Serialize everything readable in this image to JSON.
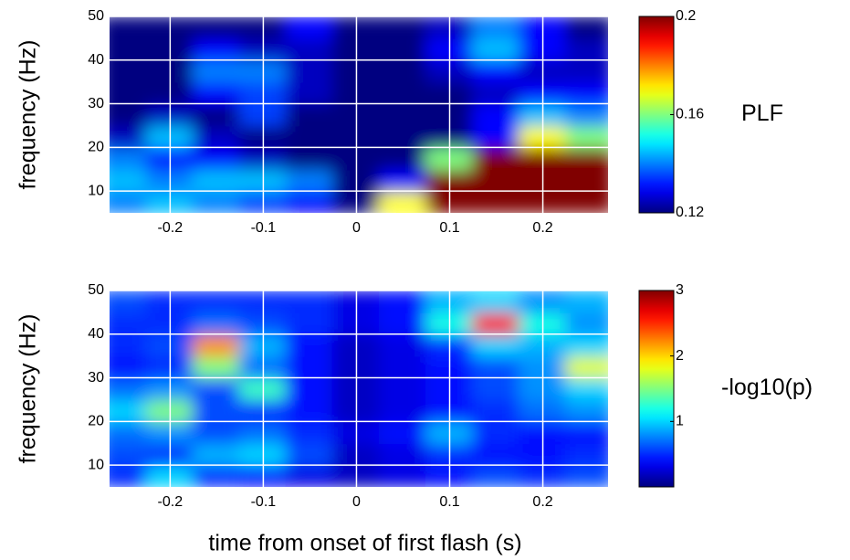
{
  "chart_data": [
    {
      "type": "heatmap",
      "ylabel": "frequency (Hz)",
      "colorbar_label": "PLF",
      "colormap": "jet",
      "grid": true,
      "x": [
        -0.25,
        -0.2,
        -0.15,
        -0.1,
        -0.05,
        0,
        0.05,
        0.1,
        0.15,
        0.2,
        0.25
      ],
      "y": [
        7.5,
        12.5,
        17.5,
        22.5,
        27.5,
        32.5,
        37.5,
        42.5,
        47.5
      ],
      "z": [
        [
          0.14,
          0.145,
          0.14,
          0.135,
          0.13,
          0.12,
          0.17,
          0.2,
          0.2,
          0.2,
          0.2
        ],
        [
          0.145,
          0.14,
          0.145,
          0.145,
          0.14,
          0.12,
          0.13,
          0.2,
          0.2,
          0.2,
          0.2
        ],
        [
          0.14,
          0.13,
          0.13,
          0.125,
          0.12,
          0.12,
          0.12,
          0.16,
          0.2,
          0.2,
          0.2
        ],
        [
          0.125,
          0.145,
          0.125,
          0.12,
          0.12,
          0.12,
          0.12,
          0.12,
          0.13,
          0.17,
          0.16
        ],
        [
          0.12,
          0.125,
          0.12,
          0.135,
          0.12,
          0.12,
          0.12,
          0.12,
          0.13,
          0.145,
          0.14
        ],
        [
          0.12,
          0.12,
          0.13,
          0.135,
          0.125,
          0.12,
          0.12,
          0.12,
          0.125,
          0.13,
          0.13
        ],
        [
          0.12,
          0.12,
          0.14,
          0.14,
          0.125,
          0.12,
          0.12,
          0.125,
          0.13,
          0.125,
          0.125
        ],
        [
          0.12,
          0.12,
          0.13,
          0.125,
          0.125,
          0.12,
          0.12,
          0.13,
          0.145,
          0.13,
          0.125
        ],
        [
          0.12,
          0.12,
          0.12,
          0.12,
          0.13,
          0.12,
          0.12,
          0.125,
          0.14,
          0.13,
          0.12
        ]
      ],
      "xlim": [
        -0.265,
        0.27
      ],
      "ylim": [
        5,
        50
      ],
      "xticks": [
        -0.2,
        -0.1,
        0,
        0.1,
        0.2
      ],
      "yticks": [
        10,
        20,
        30,
        40,
        50
      ],
      "clim": [
        0.12,
        0.2
      ],
      "cticks": [
        0.12,
        0.16,
        0.2
      ]
    },
    {
      "type": "heatmap",
      "ylabel": "frequency (Hz)",
      "xlabel": "time from onset of first flash (s)",
      "colorbar_label": "-log10(p)",
      "colormap": "jet",
      "grid": true,
      "x": [
        -0.25,
        -0.2,
        -0.15,
        -0.1,
        -0.05,
        0,
        0.05,
        0.1,
        0.15,
        0.2,
        0.25
      ],
      "y": [
        7.5,
        12.5,
        17.5,
        22.5,
        27.5,
        32.5,
        37.5,
        42.5,
        47.5
      ],
      "z": [
        [
          0.5,
          1.0,
          0.5,
          0.4,
          0.3,
          0.2,
          0.3,
          0.4,
          0.6,
          0.5,
          0.6
        ],
        [
          0.6,
          0.5,
          0.9,
          1.0,
          0.6,
          0.2,
          0.3,
          0.5,
          0.4,
          0.4,
          0.5
        ],
        [
          0.7,
          0.8,
          0.6,
          0.7,
          0.5,
          0.3,
          0.4,
          0.9,
          0.5,
          0.4,
          0.4
        ],
        [
          1.0,
          1.5,
          0.6,
          0.5,
          0.4,
          0.2,
          0.3,
          0.4,
          0.5,
          0.7,
          0.8
        ],
        [
          0.7,
          0.8,
          0.6,
          1.3,
          0.4,
          0.2,
          0.3,
          0.4,
          0.6,
          0.8,
          1.0
        ],
        [
          0.4,
          0.5,
          1.5,
          0.7,
          0.4,
          0.2,
          0.3,
          0.4,
          0.6,
          0.8,
          1.8
        ],
        [
          0.5,
          0.6,
          2.2,
          0.9,
          0.4,
          0.2,
          0.3,
          0.5,
          1.0,
          0.9,
          1.0
        ],
        [
          0.5,
          0.5,
          0.7,
          0.6,
          0.5,
          0.3,
          0.4,
          1.2,
          2.6,
          1.2,
          0.8
        ],
        [
          0.6,
          0.5,
          0.5,
          0.5,
          0.5,
          0.3,
          0.4,
          0.9,
          1.0,
          0.8,
          0.9
        ]
      ],
      "xlim": [
        -0.265,
        0.27
      ],
      "ylim": [
        5,
        50
      ],
      "xticks": [
        -0.2,
        -0.1,
        0,
        0.1,
        0.2
      ],
      "yticks": [
        10,
        20,
        30,
        40,
        50
      ],
      "clim": [
        0,
        3
      ],
      "cticks": [
        1,
        2,
        3
      ]
    }
  ]
}
